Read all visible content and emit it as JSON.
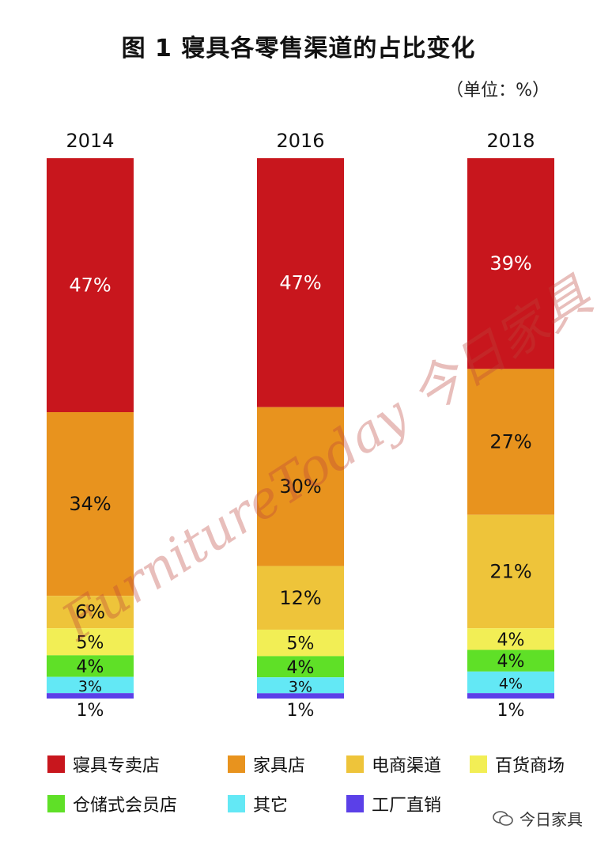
{
  "chart_data": {
    "type": "bar",
    "stacked": true,
    "title": "图 1  寝具各零售渠道的占比变化",
    "unit_label": "（单位：%）",
    "categories": [
      "2014",
      "2016",
      "2018"
    ],
    "series": [
      {
        "name": "寝具专卖店",
        "color": "#c8161d",
        "values": [
          47,
          47,
          39
        ],
        "labels": [
          "47%",
          "47%",
          "39%"
        ]
      },
      {
        "name": "家具店",
        "color": "#e8931e",
        "values": [
          34,
          30,
          27
        ],
        "labels": [
          "34%",
          "30%",
          "27%"
        ]
      },
      {
        "name": "电商渠道",
        "color": "#eec43a",
        "values": [
          6,
          12,
          21
        ],
        "labels": [
          "6%",
          "12%",
          "21%"
        ]
      },
      {
        "name": "百货商场",
        "color": "#f2ee55",
        "values": [
          5,
          5,
          4
        ],
        "labels": [
          "5%",
          "5%",
          "4%"
        ]
      },
      {
        "name": "仓储式会员店",
        "color": "#5fe027",
        "values": [
          4,
          4,
          4
        ],
        "labels": [
          "4%",
          "4%",
          "4%"
        ]
      },
      {
        "name": "其它",
        "color": "#63e8f5",
        "values": [
          3,
          3,
          4
        ],
        "labels": [
          "3%",
          "3%",
          "4%"
        ]
      },
      {
        "name": "工厂直销",
        "color": "#5b40e8",
        "values": [
          1,
          1,
          1
        ],
        "labels": [
          "1%",
          "1%",
          "1%"
        ]
      }
    ],
    "legend_position": "bottom",
    "grid": false
  },
  "watermark": {
    "text": "FurnitureToday 今日家具"
  },
  "footer": {
    "account_name": "今日家具"
  }
}
